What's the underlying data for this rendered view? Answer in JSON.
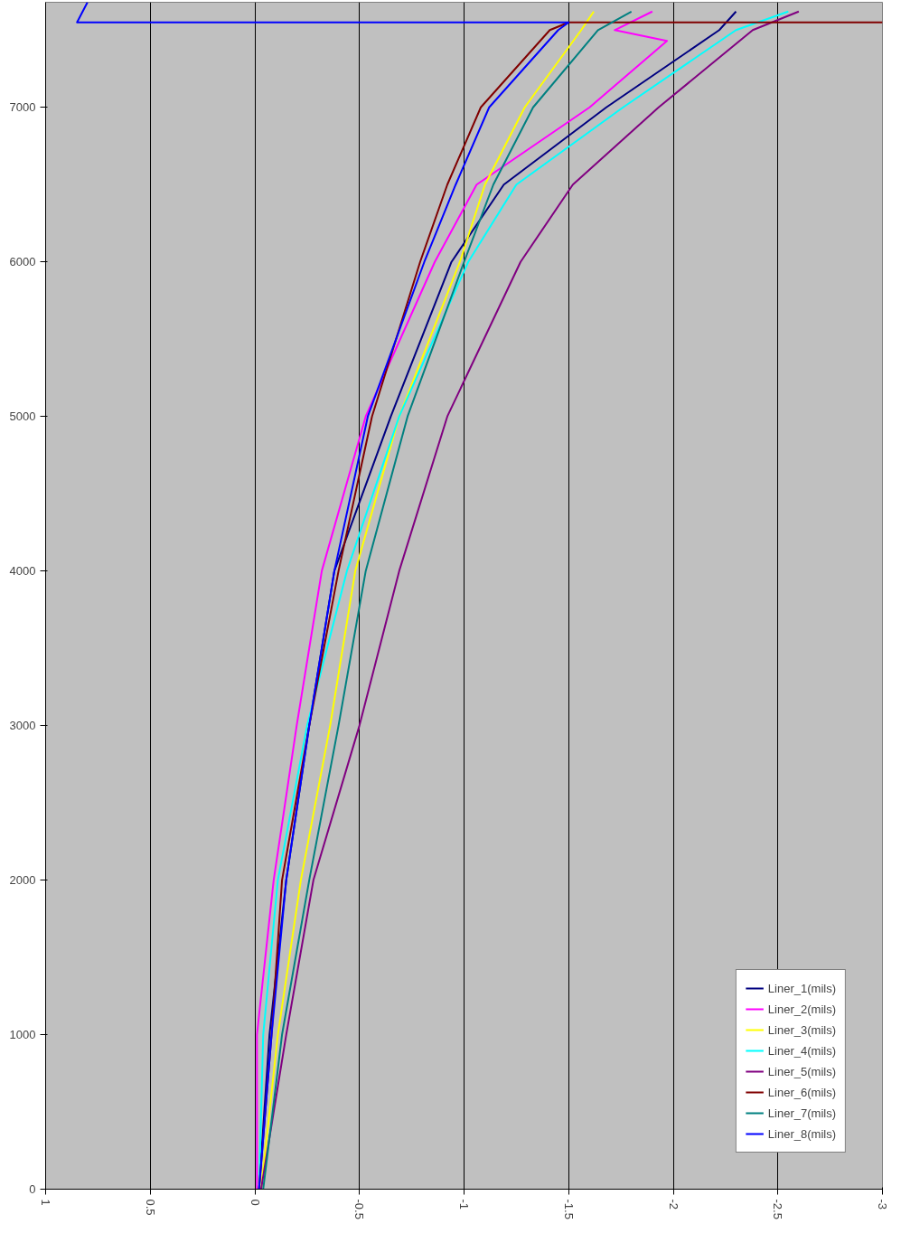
{
  "chart_data": {
    "type": "line",
    "xlim": [
      1,
      -3
    ],
    "xticks": [
      1,
      0.5,
      0,
      -0.5,
      -1,
      -1.5,
      -2,
      -2.5,
      -3
    ],
    "ylim": [
      0,
      7680
    ],
    "yticks": [
      0,
      1000,
      2000,
      3000,
      4000,
      5000,
      6000,
      7000
    ],
    "grid": "x",
    "legend": "bottom right",
    "marker": "none",
    "line_style": "solid",
    "series": [
      {
        "name": "Liner_1(mils)",
        "color": "#000080",
        "x": [
          -0.02,
          -0.07,
          -0.15,
          -0.26,
          -0.38,
          -0.65,
          -0.94,
          -1.19,
          -1.68,
          -2.22,
          -2.3
        ],
        "values": [
          0,
          1000,
          2000,
          3000,
          4000,
          5000,
          6000,
          6500,
          7000,
          7500,
          7620
        ]
      },
      {
        "name": "Liner_2(mils)",
        "color": "#ff00ff",
        "x": [
          -0.01,
          -0.01,
          -0.09,
          -0.2,
          -0.32,
          -0.53,
          -0.86,
          -1.06,
          -1.6,
          -1.97,
          -1.72,
          -1.9
        ],
        "values": [
          0,
          1000,
          2000,
          3000,
          4000,
          5000,
          6000,
          6500,
          7000,
          7430,
          7500,
          7620
        ]
      },
      {
        "name": "Liner_3(mils)",
        "color": "#ffff00",
        "x": [
          -0.03,
          -0.11,
          -0.22,
          -0.36,
          -0.48,
          -0.69,
          -0.98,
          -1.1,
          -1.29,
          -1.56,
          -1.62
        ],
        "values": [
          0,
          1000,
          2000,
          3000,
          4000,
          5000,
          6000,
          6500,
          7000,
          7500,
          7620
        ]
      },
      {
        "name": "Liner_4(mils)",
        "color": "#00ffff",
        "x": [
          -0.02,
          -0.04,
          -0.11,
          -0.25,
          -0.44,
          -0.69,
          -1.02,
          -1.25,
          -1.76,
          -2.3,
          -2.55
        ],
        "values": [
          0,
          1000,
          2000,
          3000,
          4000,
          5000,
          6000,
          6500,
          7000,
          7500,
          7620
        ]
      },
      {
        "name": "Liner_5(mils)",
        "color": "#800080",
        "x": [
          -0.03,
          -0.15,
          -0.28,
          -0.5,
          -0.69,
          -0.92,
          -1.27,
          -1.52,
          -1.93,
          -2.38,
          -2.6
        ],
        "values": [
          0,
          1000,
          2000,
          3000,
          4000,
          5000,
          6000,
          6500,
          7000,
          7500,
          7620
        ]
      },
      {
        "name": "Liner_6(mils)",
        "color": "#800000",
        "x": [
          -0.02,
          -0.08,
          -0.13,
          -0.26,
          -0.4,
          -0.56,
          -0.79,
          -0.92,
          -1.08,
          -1.41,
          -1.5,
          -3
        ],
        "values": [
          0,
          1000,
          2000,
          3000,
          4000,
          5000,
          6000,
          6500,
          7000,
          7500,
          7550,
          7550
        ]
      },
      {
        "name": "Liner_7(mils)",
        "color": "#008080",
        "x": [
          -0.04,
          -0.13,
          -0.26,
          -0.4,
          -0.53,
          -0.73,
          -1.0,
          -1.14,
          -1.33,
          -1.64,
          -1.8
        ],
        "values": [
          0,
          1000,
          2000,
          3000,
          4000,
          5000,
          6000,
          6500,
          7000,
          7500,
          7620
        ]
      },
      {
        "name": "Liner_8(mils)",
        "color": "#0000ff",
        "x": [
          -0.02,
          -0.08,
          -0.15,
          -0.26,
          -0.38,
          -0.54,
          -0.81,
          -0.96,
          -1.12,
          -1.45,
          -1.5,
          0.85,
          0.8
        ],
        "values": [
          0,
          1000,
          2000,
          3000,
          4000,
          5000,
          6000,
          6500,
          7000,
          7500,
          7550,
          7550,
          7680
        ]
      }
    ]
  }
}
